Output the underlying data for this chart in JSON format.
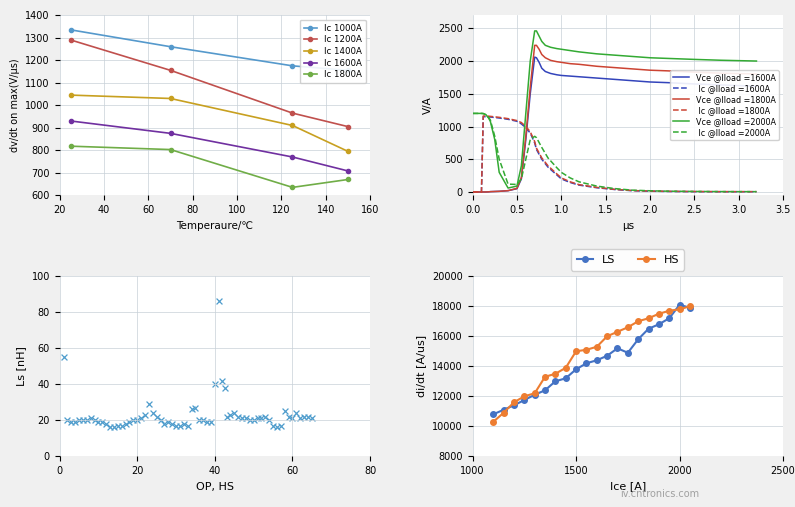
{
  "plot1": {
    "xlabel": "Temperaure/℃",
    "ylabel": "dv/dt on max(V/μs)",
    "xlim": [
      20,
      160
    ],
    "ylim": [
      600,
      1400
    ],
    "yticks": [
      600,
      700,
      800,
      900,
      1000,
      1100,
      1200,
      1300,
      1400
    ],
    "xticks": [
      20,
      40,
      60,
      80,
      100,
      120,
      140,
      160
    ],
    "series": [
      {
        "label": "Ic 1000A",
        "color": "#5599cc",
        "x": [
          25,
          70,
          125,
          150
        ],
        "y": [
          1335,
          1260,
          1175,
          1155
        ]
      },
      {
        "label": "Ic 1200A",
        "color": "#c0504d",
        "x": [
          25,
          70,
          125,
          150
        ],
        "y": [
          1290,
          1155,
          965,
          905
        ]
      },
      {
        "label": "Ic 1400A",
        "color": "#c8a020",
        "x": [
          25,
          70,
          125,
          150
        ],
        "y": [
          1045,
          1030,
          910,
          795
        ]
      },
      {
        "label": "Ic 1600A",
        "color": "#7030a0",
        "x": [
          25,
          70,
          125,
          150
        ],
        "y": [
          930,
          875,
          770,
          708
        ]
      },
      {
        "label": "Ic 1800A",
        "color": "#70ad47",
        "x": [
          25,
          70,
          125,
          150
        ],
        "y": [
          818,
          803,
          635,
          670
        ]
      }
    ]
  },
  "plot2": {
    "xlabel": "μs",
    "ylabel": "V/A",
    "xlim": [
      0,
      3.5
    ],
    "ylim": [
      -50,
      2700
    ],
    "yticks": [
      0,
      500,
      1000,
      1500,
      2000,
      2500
    ],
    "xticks": [
      0,
      0.5,
      1.0,
      1.5,
      2.0,
      2.5,
      3.0,
      3.5
    ],
    "series": [
      {
        "label": "Vce @Iload =1600A",
        "color": "#3344bb",
        "linestyle": "solid",
        "x": [
          0.0,
          0.05,
          0.1,
          0.15,
          0.18,
          0.2,
          0.3,
          0.4,
          0.5,
          0.55,
          0.6,
          0.65,
          0.7,
          0.72,
          0.75,
          0.78,
          0.82,
          0.88,
          0.95,
          1.0,
          1.1,
          1.2,
          1.4,
          1.6,
          1.8,
          2.0,
          2.2,
          2.5,
          2.8,
          3.0,
          3.2
        ],
        "y": [
          0,
          0,
          0,
          0,
          2,
          5,
          10,
          20,
          50,
          200,
          800,
          1500,
          2060,
          2050,
          1980,
          1890,
          1840,
          1810,
          1790,
          1780,
          1770,
          1760,
          1740,
          1720,
          1700,
          1680,
          1670,
          1650,
          1635,
          1625,
          1615
        ]
      },
      {
        "label": " Ic @Iload =1600A",
        "color": "#3344bb",
        "linestyle": "dashed",
        "x": [
          0.0,
          0.05,
          0.1,
          0.12,
          0.15,
          0.18,
          0.2,
          0.3,
          0.4,
          0.5,
          0.55,
          0.6,
          0.65,
          0.7,
          0.72,
          0.78,
          0.85,
          0.95,
          1.0,
          1.1,
          1.2,
          1.4,
          1.6,
          1.8,
          2.0,
          2.2,
          2.5,
          2.8,
          3.0,
          3.2
        ],
        "y": [
          0,
          0,
          0,
          1150,
          1150,
          1148,
          1145,
          1130,
          1110,
          1080,
          1040,
          980,
          900,
          750,
          650,
          500,
          380,
          260,
          200,
          145,
          105,
          65,
          38,
          20,
          12,
          8,
          5,
          4,
          4,
          4
        ]
      },
      {
        "label": "Vce @Iload =1800A",
        "color": "#cc4433",
        "linestyle": "solid",
        "x": [
          0.0,
          0.05,
          0.1,
          0.15,
          0.18,
          0.2,
          0.3,
          0.4,
          0.5,
          0.55,
          0.6,
          0.65,
          0.7,
          0.72,
          0.75,
          0.78,
          0.82,
          0.88,
          0.95,
          1.0,
          1.1,
          1.2,
          1.4,
          1.6,
          1.8,
          2.0,
          2.2,
          2.5,
          2.8,
          3.0,
          3.2
        ],
        "y": [
          0,
          0,
          0,
          0,
          2,
          5,
          10,
          20,
          55,
          220,
          850,
          1600,
          2240,
          2240,
          2180,
          2100,
          2050,
          2010,
          1990,
          1980,
          1960,
          1950,
          1920,
          1900,
          1880,
          1860,
          1850,
          1830,
          1815,
          1808,
          1803
        ]
      },
      {
        "label": " Ic @Iload =1800A",
        "color": "#cc4433",
        "linestyle": "dashed",
        "x": [
          0.0,
          0.05,
          0.1,
          0.12,
          0.15,
          0.18,
          0.2,
          0.3,
          0.4,
          0.5,
          0.55,
          0.6,
          0.65,
          0.7,
          0.72,
          0.78,
          0.85,
          0.95,
          1.0,
          1.1,
          1.2,
          1.4,
          1.6,
          1.8,
          2.0,
          2.2,
          2.5,
          2.8,
          3.0,
          3.2
        ],
        "y": [
          0,
          0,
          0,
          1160,
          1160,
          1158,
          1155,
          1140,
          1120,
          1090,
          1060,
          1000,
          920,
          770,
          670,
          520,
          400,
          275,
          215,
          155,
          112,
          70,
          40,
          22,
          14,
          10,
          7,
          5,
          5,
          5
        ]
      },
      {
        "label": "Vce @Iload =2000A",
        "color": "#33aa33",
        "linestyle": "solid",
        "x": [
          0.0,
          0.05,
          0.1,
          0.12,
          0.15,
          0.18,
          0.2,
          0.25,
          0.3,
          0.4,
          0.5,
          0.55,
          0.6,
          0.65,
          0.7,
          0.72,
          0.75,
          0.78,
          0.82,
          0.88,
          0.95,
          1.0,
          1.1,
          1.2,
          1.4,
          1.6,
          1.8,
          2.0,
          2.2,
          2.5,
          2.8,
          3.0,
          3.2
        ],
        "y": [
          1200,
          1200,
          1200,
          1198,
          1180,
          1130,
          1080,
          800,
          300,
          60,
          90,
          400,
          1200,
          2000,
          2460,
          2460,
          2380,
          2300,
          2240,
          2210,
          2190,
          2180,
          2160,
          2140,
          2110,
          2090,
          2070,
          2050,
          2040,
          2025,
          2012,
          2006,
          2000
        ]
      },
      {
        "label": " Ic @Iload =2000A",
        "color": "#33aa33",
        "linestyle": "dashed",
        "x": [
          0.0,
          0.05,
          0.1,
          0.12,
          0.15,
          0.18,
          0.2,
          0.25,
          0.3,
          0.4,
          0.5,
          0.55,
          0.6,
          0.65,
          0.7,
          0.72,
          0.78,
          0.85,
          0.95,
          1.0,
          1.1,
          1.2,
          1.4,
          1.6,
          1.8,
          2.0,
          2.2,
          2.5,
          2.8,
          3.0,
          3.2
        ],
        "y": [
          1200,
          1200,
          1200,
          1198,
          1180,
          1140,
          1100,
          850,
          500,
          120,
          115,
          200,
          500,
          800,
          850,
          830,
          680,
          520,
          370,
          300,
          215,
          155,
          90,
          52,
          28,
          18,
          12,
          8,
          6,
          5,
          5
        ]
      }
    ]
  },
  "plot3": {
    "xlabel": "OP, HS",
    "ylabel": "Ls [nH]",
    "xlim": [
      0,
      80
    ],
    "ylim": [
      0,
      100
    ],
    "yticks": [
      0,
      20,
      40,
      60,
      80,
      100
    ],
    "xticks": [
      0,
      20,
      40,
      60,
      80
    ],
    "scatter_x": [
      1,
      2,
      3,
      4,
      5,
      6,
      7,
      8,
      9,
      10,
      11,
      12,
      13,
      14,
      15,
      16,
      17,
      18,
      19,
      20,
      21,
      22,
      23,
      24,
      25,
      26,
      27,
      28,
      29,
      30,
      31,
      32,
      33,
      34,
      35,
      36,
      37,
      38,
      39,
      40,
      41,
      41.8,
      42.5,
      43,
      44,
      45,
      46,
      47,
      48,
      49,
      50,
      51,
      52,
      53,
      54,
      55,
      56,
      57,
      58,
      59,
      60,
      61,
      62,
      63,
      64,
      65
    ],
    "scatter_y": [
      55,
      20,
      19,
      19,
      20,
      20,
      20,
      21,
      20,
      19,
      19,
      18,
      16,
      16,
      17,
      17,
      18,
      19,
      20,
      20,
      21,
      23,
      29,
      24,
      22,
      20,
      18,
      19,
      18,
      17,
      17,
      18,
      17,
      26,
      27,
      20,
      20,
      19,
      19,
      40,
      86,
      42,
      38,
      22,
      23,
      24,
      22,
      21,
      21,
      20,
      20,
      21,
      21,
      22,
      20,
      17,
      16,
      17,
      25,
      22,
      21,
      24,
      21,
      22,
      22,
      21
    ],
    "color": "#4e9ccc"
  },
  "plot4": {
    "xlabel": "Ice [A]",
    "ylabel": "di/dt [A/us]",
    "xlim": [
      1000,
      2500
    ],
    "ylim": [
      8000,
      20000
    ],
    "yticks": [
      8000,
      10000,
      12000,
      14000,
      16000,
      18000,
      20000
    ],
    "xticks": [
      1000,
      1500,
      2000,
      2500
    ],
    "series_ls": {
      "label": "LS",
      "color": "#4472c4",
      "x": [
        1100,
        1150,
        1200,
        1250,
        1300,
        1350,
        1400,
        1450,
        1500,
        1550,
        1600,
        1650,
        1700,
        1750,
        1800,
        1850,
        1900,
        1950,
        2000,
        2050
      ],
      "y": [
        10800,
        11100,
        11400,
        11750,
        12100,
        12400,
        13000,
        13200,
        13800,
        14200,
        14400,
        14700,
        15200,
        14900,
        15800,
        16500,
        16800,
        17200,
        18100,
        17900
      ]
    },
    "series_hs": {
      "label": "HS",
      "color": "#ed7d31",
      "x": [
        1100,
        1150,
        1200,
        1250,
        1300,
        1350,
        1400,
        1450,
        1500,
        1550,
        1600,
        1650,
        1700,
        1750,
        1800,
        1850,
        1900,
        1950,
        2000,
        2050
      ],
      "y": [
        10300,
        10900,
        11600,
        12000,
        12200,
        13300,
        13500,
        13900,
        15000,
        15100,
        15300,
        16000,
        16300,
        16600,
        17000,
        17200,
        17500,
        17700,
        17800,
        18000
      ]
    }
  },
  "bg_color": "#f5f5f5",
  "grid_color": "#c8d0d8",
  "watermark": "iv.cntronics.com"
}
